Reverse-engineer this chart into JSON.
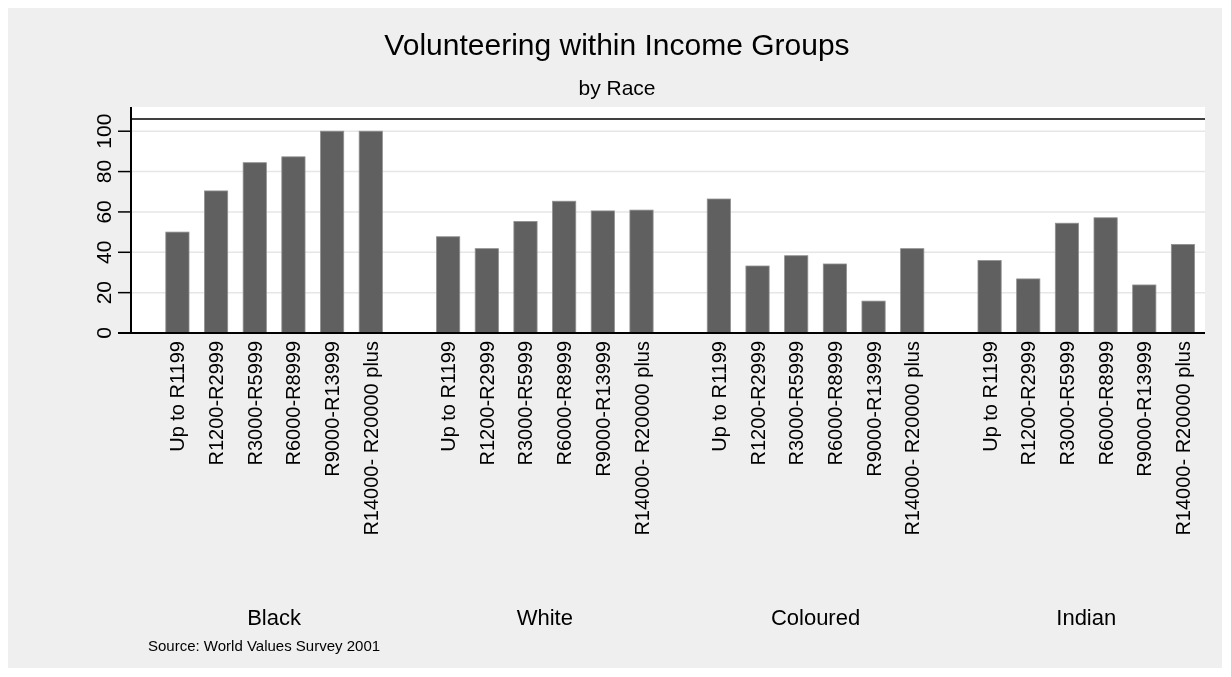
{
  "chart_data": {
    "type": "bar",
    "title": "Volunteering within Income Groups",
    "subtitle": "by Race",
    "categories": [
      "Up to R1199",
      "R1200-R2999",
      "R3000-R5999",
      "R6000-R8999",
      "R9000-R13999",
      "R14000- R20000 plus",
      "Up to R1199",
      "R1200-R2999",
      "R3000-R5999",
      "R6000-R8999",
      "R9000-R13999",
      "R14000- R20000 plus",
      "Up to R1199",
      "R1200-R2999",
      "R3000-R5999",
      "R6000-R8999",
      "R9000-R13999",
      "R14000- R20000 plus",
      "Up to R1199",
      "R1200-R2999",
      "R3000-R5999",
      "R6000-R8999",
      "R9000-R13999",
      "R14000- R20000 plus"
    ],
    "values": [
      50,
      70.4,
      84.4,
      87.3,
      100,
      100,
      47.7,
      41.8,
      55.3,
      65.3,
      60.5,
      60.9,
      66.4,
      33.2,
      38.3,
      34.2,
      15.8,
      41.8,
      35.9,
      26.8,
      54.4,
      57.1,
      23.8,
      43.9
    ],
    "color": "#606060",
    "ylim": [
      0,
      112
    ],
    "yticks": [
      0,
      20,
      40,
      60,
      80,
      100
    ],
    "grid": "y",
    "ref_lines": [
      {
        "axis": "y",
        "value": 106,
        "color": "#000000"
      }
    ],
    "annotations": [
      "Black",
      "White",
      "Coloured",
      "Indian",
      "Source: World Values Survey 2001"
    ]
  }
}
